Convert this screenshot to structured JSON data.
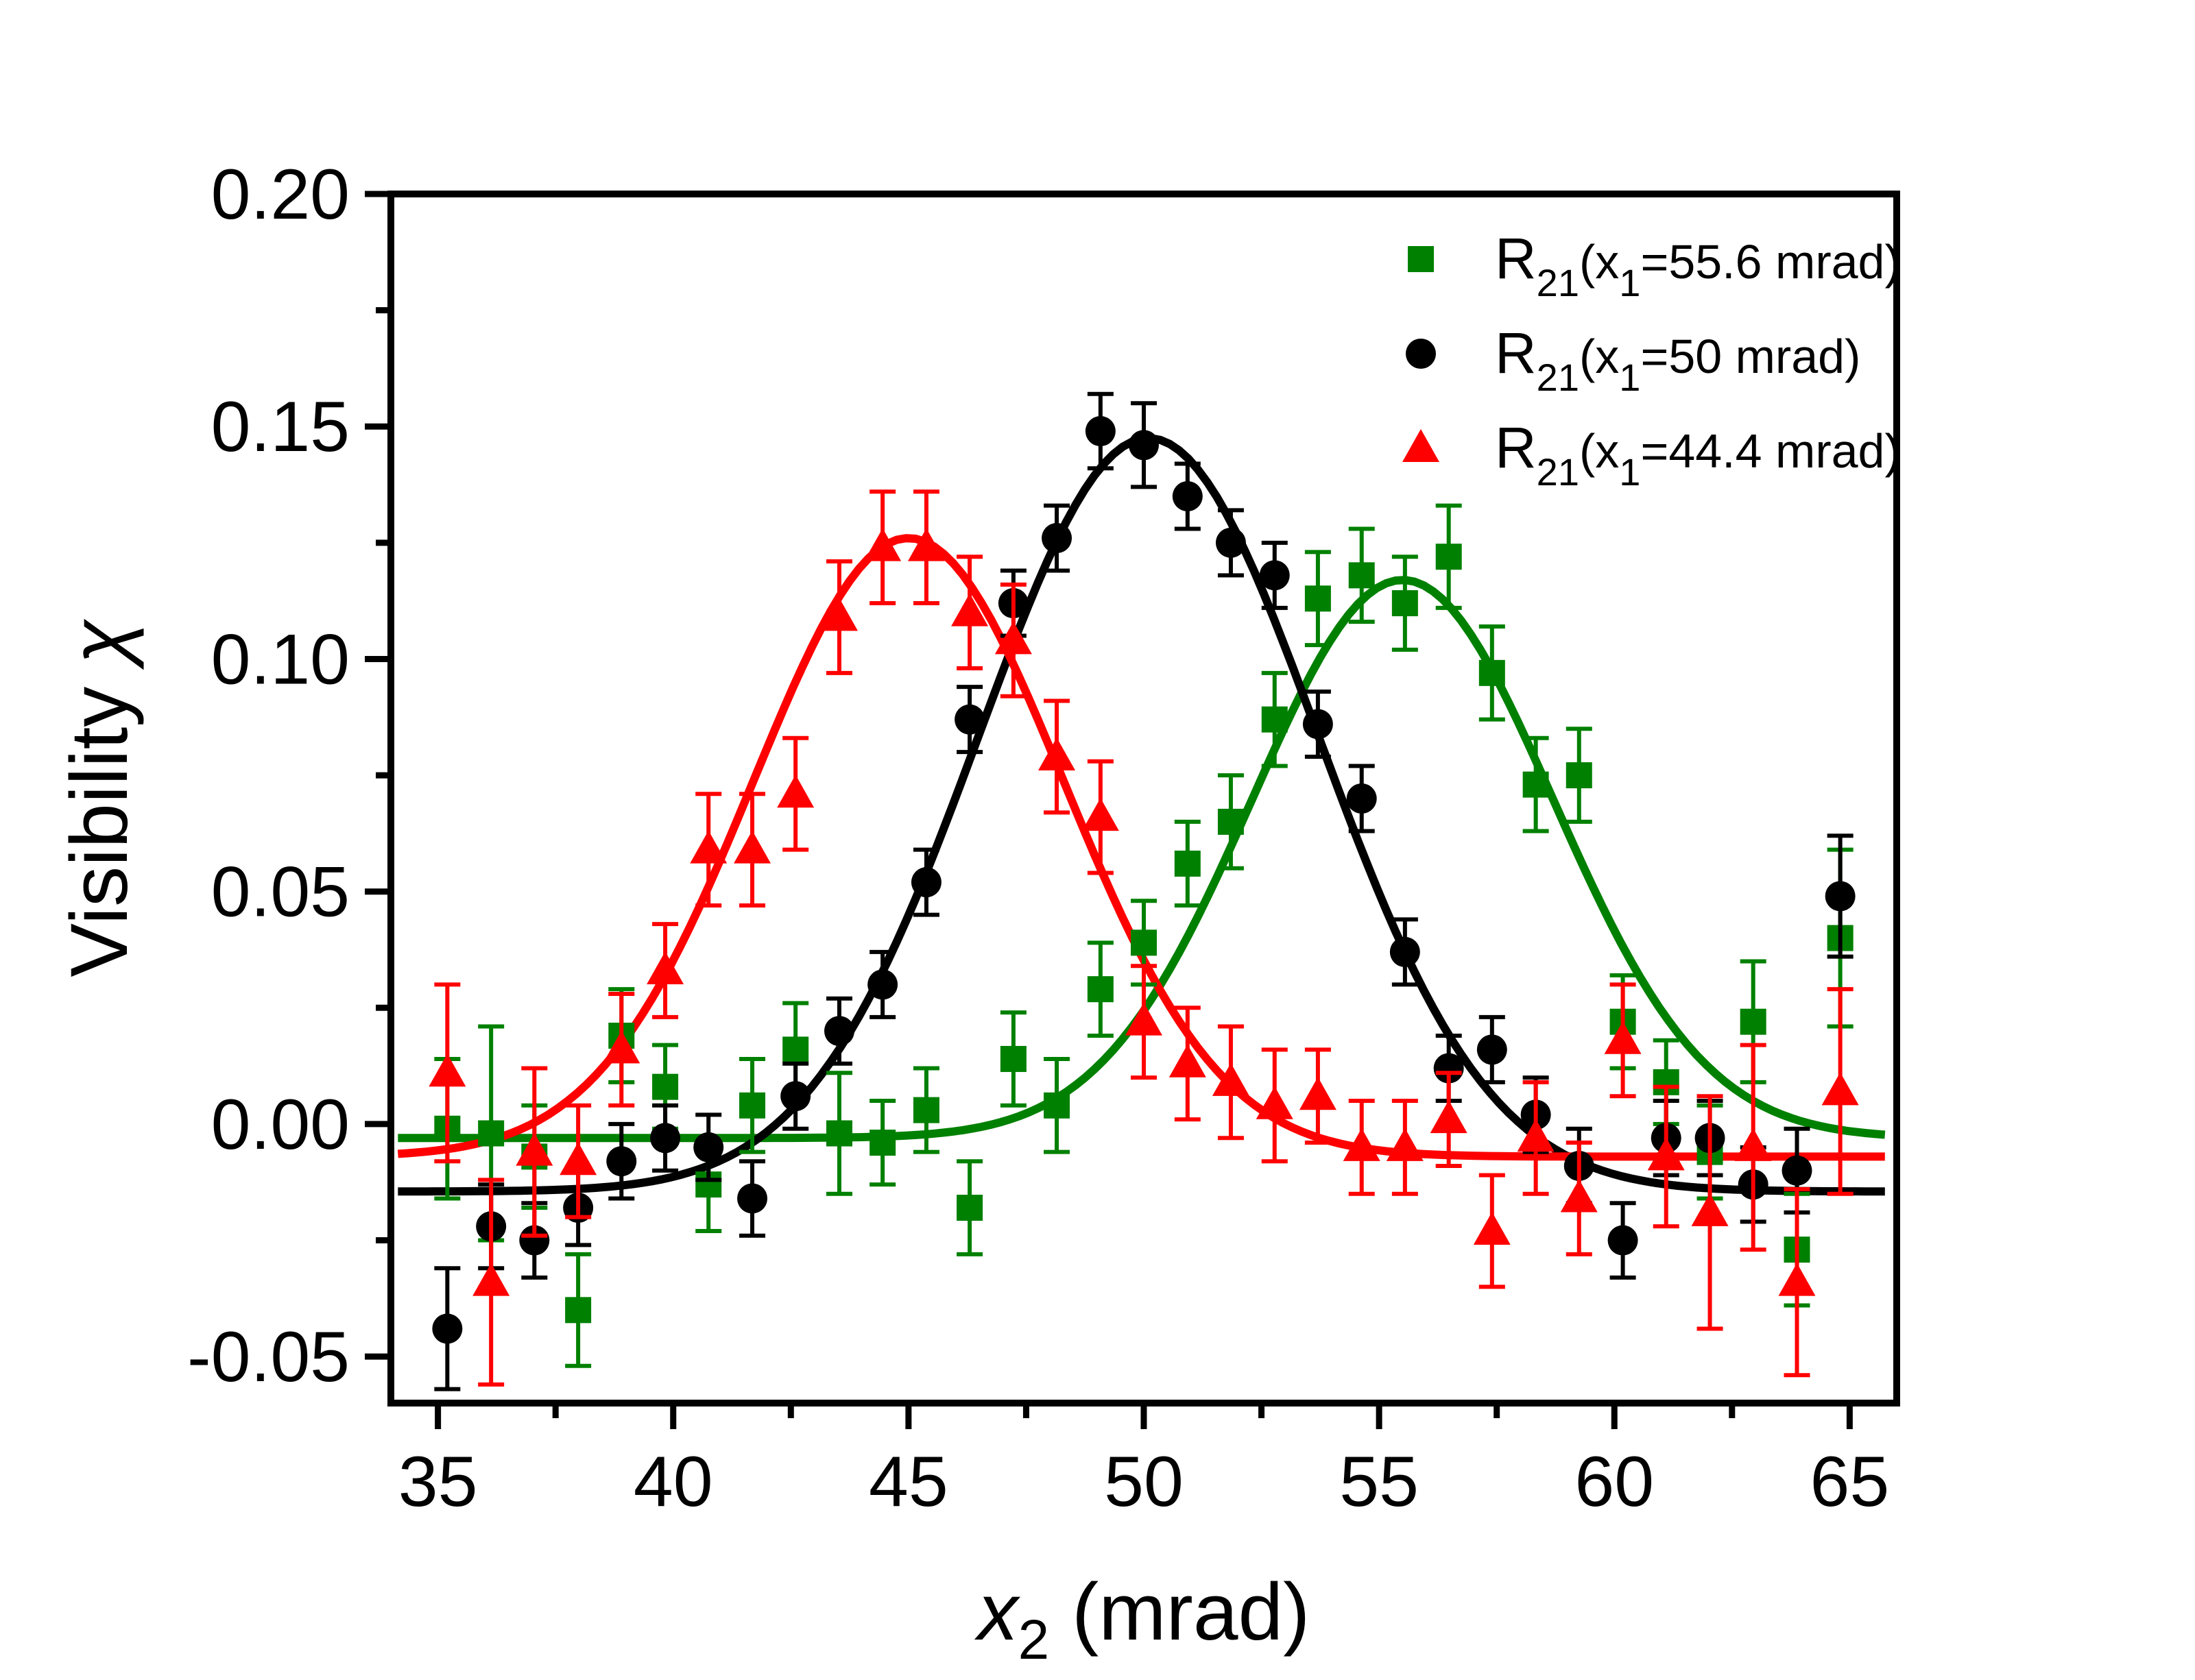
{
  "figure": {
    "background": "#ffffff",
    "axes_color": "#000000"
  },
  "chart_data": {
    "type": "scatter",
    "title": "",
    "xlabel_parts": {
      "x": "x",
      "sub": "2",
      "rest": " (mrad)"
    },
    "ylabel_parts": {
      "prefix": "Visibility ",
      "symbol": "χ"
    },
    "xlim": [
      34,
      66
    ],
    "ylim": [
      -0.06,
      0.2
    ],
    "grid": false,
    "legend_position": "top-right",
    "x_ticks": [
      35,
      40,
      45,
      50,
      55,
      60,
      65
    ],
    "x_tick_labels": [
      "35",
      "40",
      "45",
      "50",
      "55",
      "60",
      "65"
    ],
    "x_minor_ticks": [
      37.5,
      42.5,
      47.5,
      52.5,
      57.5,
      62.5
    ],
    "y_ticks": [
      0.2,
      0.15,
      0.1,
      0.05,
      0.0,
      -0.05
    ],
    "y_tick_labels": [
      "0.20",
      "0.15",
      "0.10",
      "0.05",
      "0.00",
      "-0.05"
    ],
    "y_minor_ticks": [
      0.175,
      0.125,
      0.075,
      0.025,
      -0.025
    ],
    "x": [
      35.2,
      36.13,
      37.05,
      37.98,
      38.9,
      39.83,
      40.75,
      41.68,
      42.6,
      43.53,
      44.45,
      45.38,
      46.3,
      47.23,
      48.15,
      49.08,
      50.0,
      50.93,
      51.85,
      52.78,
      53.7,
      54.63,
      55.55,
      56.48,
      57.4,
      58.33,
      59.25,
      60.18,
      61.1,
      62.03,
      62.95,
      63.88,
      64.8
    ],
    "series": [
      {
        "name": "R21(x1=55.6 mrad)",
        "marker": "square",
        "color": "#008000",
        "values": [
          -0.001,
          -0.002,
          -0.007,
          -0.04,
          0.019,
          0.008,
          -0.013,
          0.004,
          0.016,
          -0.002,
          -0.004,
          0.003,
          -0.018,
          0.014,
          0.004,
          0.029,
          0.039,
          0.056,
          0.065,
          0.087,
          0.113,
          0.118,
          0.112,
          0.122,
          0.097,
          0.073,
          0.075,
          0.022,
          0.009,
          -0.006,
          0.022,
          -0.027,
          0.04
        ],
        "errors": [
          0.015,
          0.023,
          0.011,
          0.012,
          0.01,
          0.009,
          0.01,
          0.01,
          0.01,
          0.013,
          0.009,
          0.009,
          0.01,
          0.01,
          0.01,
          0.01,
          0.009,
          0.009,
          0.01,
          0.01,
          0.01,
          0.01,
          0.01,
          0.011,
          0.01,
          0.01,
          0.01,
          0.01,
          0.009,
          0.01,
          0.013,
          0.012,
          0.019
        ],
        "fit": {
          "base": -0.003,
          "amp": 0.12,
          "mean": 55.5,
          "sigma": 3.2
        }
      },
      {
        "name": "R21(x1=50 mrad)",
        "marker": "circle",
        "color": "#000000",
        "values": [
          -0.044,
          -0.022,
          -0.025,
          -0.018,
          -0.008,
          -0.003,
          -0.005,
          -0.016,
          0.006,
          0.02,
          0.03,
          0.052,
          0.087,
          0.112,
          0.126,
          0.149,
          0.146,
          0.135,
          0.125,
          0.118,
          0.086,
          0.07,
          0.037,
          0.012,
          0.016,
          0.002,
          -0.009,
          -0.025,
          -0.003,
          -0.003,
          -0.013,
          -0.01,
          0.049
        ],
        "errors": [
          0.013,
          0.009,
          0.008,
          0.008,
          0.008,
          0.007,
          0.007,
          0.008,
          0.007,
          0.007,
          0.007,
          0.007,
          0.007,
          0.007,
          0.007,
          0.008,
          0.009,
          0.007,
          0.007,
          0.007,
          0.007,
          0.007,
          0.007,
          0.007,
          0.007,
          0.008,
          0.008,
          0.008,
          0.008,
          0.008,
          0.008,
          0.009,
          0.013
        ],
        "fit": {
          "base": -0.0145,
          "amp": 0.162,
          "mean": 50.1,
          "sigma": 3.6
        }
      },
      {
        "name": "R21(x1=44.4 mrad)",
        "marker": "triangle",
        "color": "#FF0000",
        "values": [
          0.011,
          -0.034,
          -0.006,
          -0.008,
          0.016,
          0.033,
          0.059,
          0.059,
          0.071,
          0.109,
          0.124,
          0.124,
          0.11,
          0.104,
          0.079,
          0.066,
          0.022,
          0.013,
          0.009,
          0.004,
          0.006,
          -0.005,
          -0.005,
          0.001,
          -0.023,
          -0.003,
          -0.016,
          0.018,
          -0.007,
          -0.019,
          -0.005,
          -0.034,
          0.007
        ],
        "errors": [
          0.019,
          0.022,
          0.018,
          0.012,
          0.012,
          0.01,
          0.012,
          0.012,
          0.012,
          0.012,
          0.012,
          0.012,
          0.012,
          0.012,
          0.012,
          0.012,
          0.012,
          0.012,
          0.012,
          0.012,
          0.01,
          0.01,
          0.01,
          0.01,
          0.012,
          0.012,
          0.012,
          0.012,
          0.015,
          0.025,
          0.022,
          0.02,
          0.022
        ],
        "fit": {
          "base": -0.007,
          "amp": 0.133,
          "mean": 45.0,
          "sigma": 3.3
        }
      }
    ],
    "legend": [
      {
        "marker": "square",
        "color": "#008000",
        "parts": [
          {
            "t": "R"
          },
          {
            "t": "21",
            "sub": true
          },
          {
            "t": "(x",
            "small": true
          },
          {
            "t": "1",
            "sub": true
          },
          {
            "t": "=55.6 mrad)",
            "small": true
          }
        ]
      },
      {
        "marker": "circle",
        "color": "#000000",
        "parts": [
          {
            "t": "R"
          },
          {
            "t": "21",
            "sub": true
          },
          {
            "t": "(x",
            "small": true
          },
          {
            "t": "1",
            "sub": true
          },
          {
            "t": "=50 mrad)",
            "small": true
          }
        ]
      },
      {
        "marker": "triangle",
        "color": "#FF0000",
        "parts": [
          {
            "t": "R"
          },
          {
            "t": "21",
            "sub": true
          },
          {
            "t": "(x",
            "small": true
          },
          {
            "t": "1",
            "sub": true
          },
          {
            "t": "=44.4 mrad)",
            "small": true
          }
        ]
      }
    ]
  }
}
